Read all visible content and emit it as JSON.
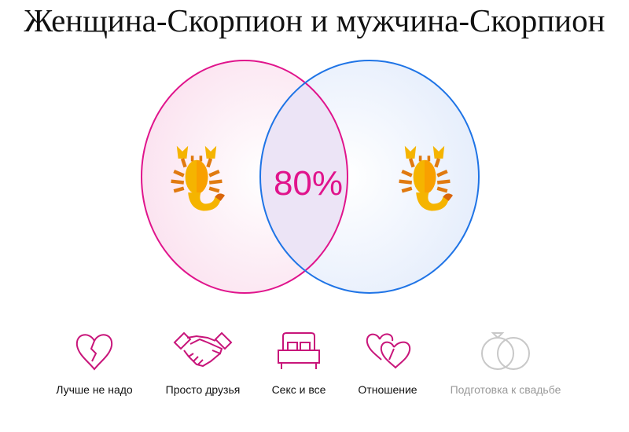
{
  "title": "Женщина-Скорпион и мужчина-Скорпион",
  "compatibility": "80%",
  "left_sign_icon": "scorpion-icon",
  "right_sign_icon": "scorpion-icon",
  "colors": {
    "female": "#e0148c",
    "male": "#1f74e6",
    "inactive": "#c8c8c8"
  },
  "levels": [
    {
      "label": "Лучше не надо",
      "icon": "broken-heart-icon",
      "active": true
    },
    {
      "label": "Просто друзья",
      "icon": "handshake-icon",
      "active": true
    },
    {
      "label": "Секс и все",
      "icon": "bed-icon",
      "active": true
    },
    {
      "label": "Отношение",
      "icon": "two-hearts-icon",
      "active": true
    },
    {
      "label": "Подготовка к свадьбе",
      "icon": "wedding-rings-icon",
      "active": false
    }
  ]
}
